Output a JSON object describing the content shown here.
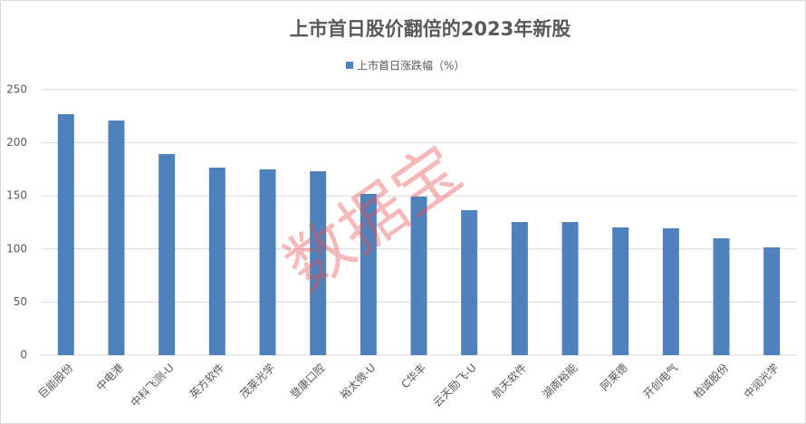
{
  "chart_data": {
    "type": "bar",
    "title": "上市首日股价翻倍的2023年新股",
    "legend": "上市首日涨跌幅（%）",
    "watermark": "数据宝",
    "categories": [
      "巨能股份",
      "中电港",
      "中科飞测-U",
      "英方软件",
      "茂莱光学",
      "登康口腔",
      "裕太微-U",
      "C华丰",
      "云天励飞-U",
      "航天软件",
      "湖南裕能",
      "阿莱德",
      "开创电气",
      "柏诚股份",
      "中润光学"
    ],
    "values": [
      227,
      221,
      189.4,
      176.6,
      175,
      173.2,
      151.9,
      149.3,
      136.5,
      125.4,
      125.4,
      120.3,
      119.5,
      110,
      101.5
    ],
    "color": "#4f81bd",
    "ylim": [
      0,
      250
    ],
    "yticks": [
      0,
      50,
      100,
      150,
      200,
      250
    ],
    "grid": true
  }
}
